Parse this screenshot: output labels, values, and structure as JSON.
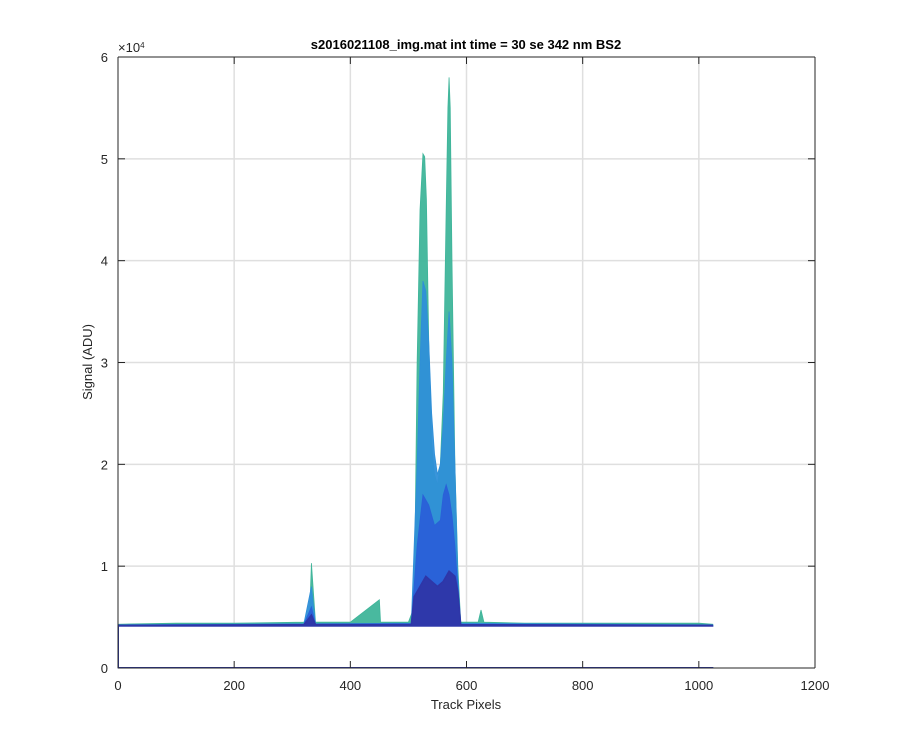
{
  "chart_data": {
    "type": "area",
    "title": "s2016021108_img.mat int time = 30 se  342 nm BS2",
    "xlabel": "Track Pixels",
    "ylabel": "Signal (ADU)",
    "y_exponent_label": "×10",
    "y_exponent_power": "4",
    "xlim": [
      0,
      1200
    ],
    "ylim": [
      0,
      60000
    ],
    "xticks": [
      0,
      200,
      400,
      600,
      800,
      1000,
      1200
    ],
    "yticks": [
      0,
      10000,
      20000,
      30000,
      40000,
      50000,
      60000
    ],
    "xtick_labels": [
      "0",
      "200",
      "400",
      "600",
      "800",
      "1000",
      "1200"
    ],
    "ytick_labels": [
      "0",
      "1",
      "2",
      "3",
      "4",
      "5",
      "6"
    ],
    "grid": true,
    "baseline_level": 4200,
    "series": [
      {
        "color": "#3fb59a",
        "x": [
          0,
          100,
          200,
          320,
          330,
          333,
          340,
          400,
          450,
          452,
          500,
          510,
          515,
          520,
          525,
          528,
          531,
          535,
          540,
          545,
          550,
          555,
          560,
          565,
          568,
          570,
          572,
          575,
          580,
          585,
          590,
          620,
          625,
          630,
          700,
          800,
          900,
          1000,
          1024
        ],
        "y": [
          4300,
          4400,
          4400,
          4500,
          5500,
          10300,
          4500,
          4500,
          6700,
          4500,
          4500,
          6000,
          30000,
          45000,
          50500,
          50200,
          46000,
          32000,
          22000,
          19000,
          18000,
          20000,
          27000,
          45000,
          55000,
          58000,
          55000,
          40000,
          20000,
          10000,
          4500,
          4500,
          5700,
          4500,
          4400,
          4400,
          4400,
          4400,
          4300
        ]
      },
      {
        "color": "#2f8fd8",
        "x": [
          0,
          320,
          333,
          340,
          505,
          515,
          520,
          525,
          530,
          535,
          540,
          545,
          550,
          555,
          560,
          565,
          570,
          575,
          580,
          585,
          590,
          1024
        ],
        "y": [
          4250,
          4350,
          8000,
          4350,
          4400,
          20000,
          30000,
          38000,
          37000,
          32000,
          25000,
          21000,
          19000,
          20000,
          24000,
          30000,
          35000,
          30000,
          20000,
          9000,
          4400,
          4250
        ]
      },
      {
        "color": "#2a60d8",
        "x": [
          0,
          320,
          333,
          340,
          505,
          515,
          525,
          535,
          545,
          555,
          560,
          565,
          570,
          575,
          580,
          585,
          590,
          1024
        ],
        "y": [
          4220,
          4300,
          6000,
          4300,
          4350,
          12000,
          17000,
          16000,
          14000,
          14500,
          17000,
          18000,
          17000,
          15000,
          12000,
          8000,
          4300,
          4220
        ]
      },
      {
        "color": "#2e36a8",
        "x": [
          0,
          320,
          333,
          340,
          505,
          510,
          520,
          530,
          540,
          550,
          560,
          570,
          580,
          585,
          590,
          1024
        ],
        "y": [
          4180,
          4250,
          5200,
          4250,
          4250,
          7000,
          8000,
          9000,
          8500,
          8000,
          8500,
          9500,
          9000,
          7500,
          4250,
          4180
        ]
      }
    ]
  }
}
